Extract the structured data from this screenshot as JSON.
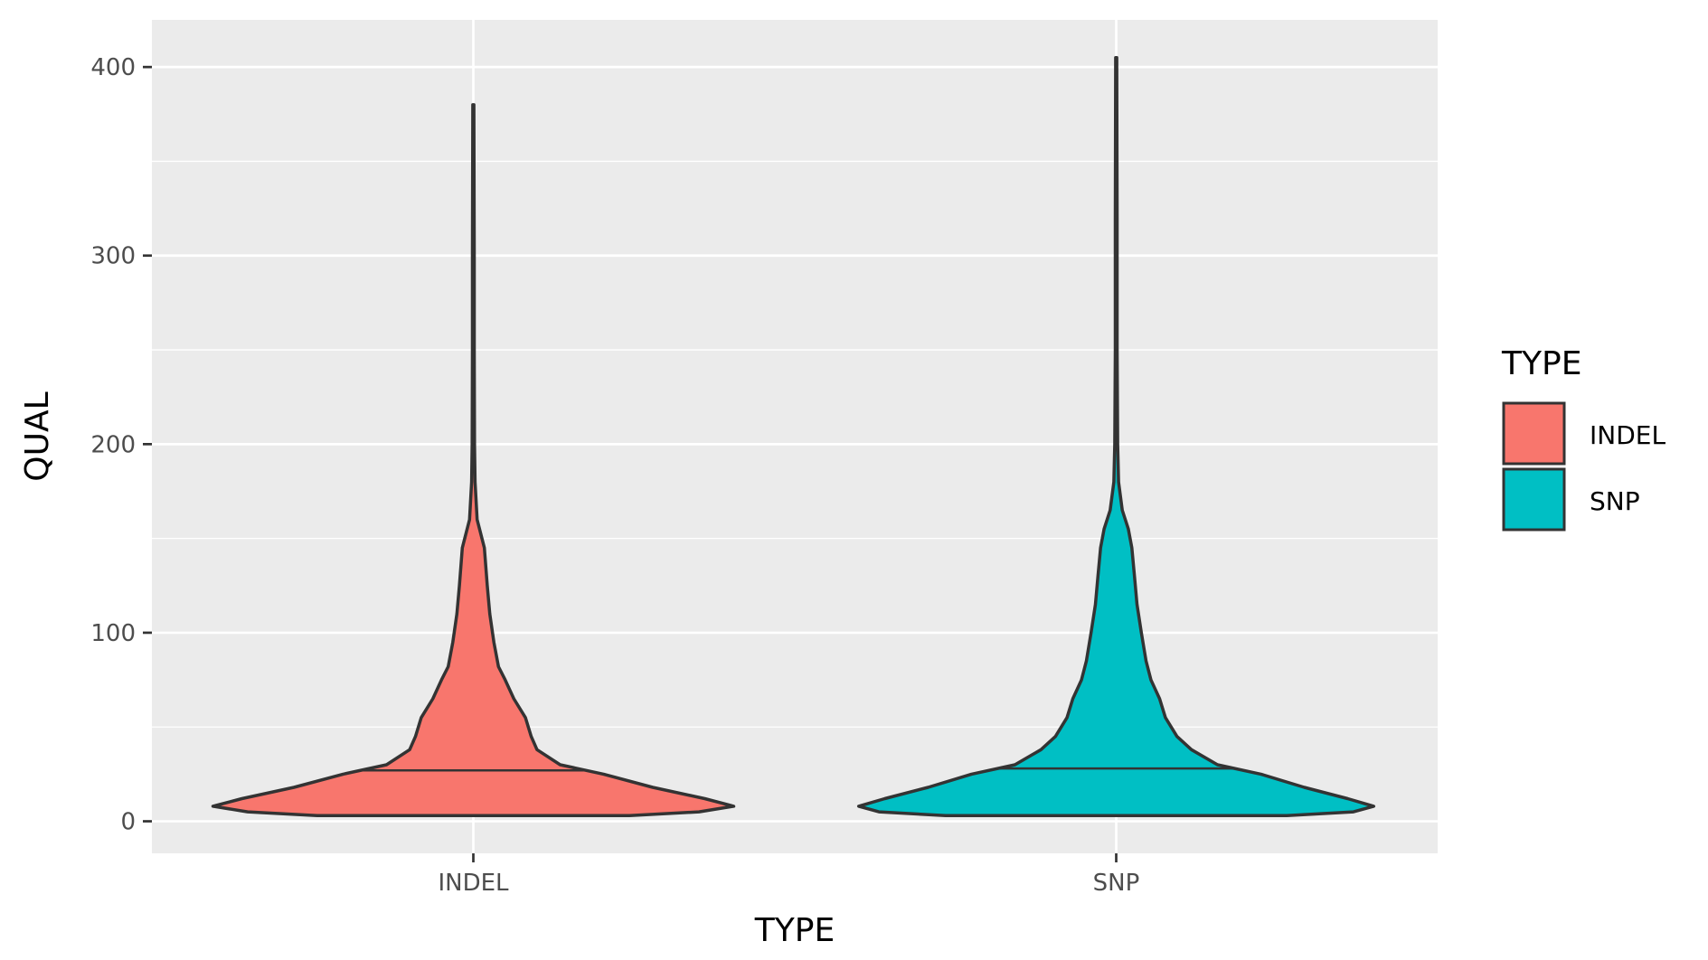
{
  "chart_data": {
    "type": "violin",
    "xlabel": "TYPE",
    "ylabel": "QUAL",
    "categories": [
      "INDEL",
      "SNP"
    ],
    "ylim": [
      -17,
      425
    ],
    "yticks": [
      0,
      100,
      200,
      300,
      400
    ],
    "grid": true,
    "legend": {
      "title": "TYPE",
      "position": "right",
      "entries": [
        {
          "label": "INDEL",
          "color": "#F8766D"
        },
        {
          "label": "SNP",
          "color": "#00BFC4"
        }
      ]
    },
    "series": [
      {
        "name": "INDEL",
        "color": "#F8766D",
        "median": 27,
        "min": 3,
        "max": 380,
        "profile": [
          {
            "qual": 3,
            "width": 0.54
          },
          {
            "qual": 5,
            "width": 0.78
          },
          {
            "qual": 8,
            "width": 0.9
          },
          {
            "qual": 12,
            "width": 0.8
          },
          {
            "qual": 18,
            "width": 0.62
          },
          {
            "qual": 25,
            "width": 0.45
          },
          {
            "qual": 30,
            "width": 0.3
          },
          {
            "qual": 38,
            "width": 0.22
          },
          {
            "qual": 45,
            "width": 0.2
          },
          {
            "qual": 55,
            "width": 0.18
          },
          {
            "qual": 65,
            "width": 0.14
          },
          {
            "qual": 75,
            "width": 0.11
          },
          {
            "qual": 82,
            "width": 0.087
          },
          {
            "qual": 95,
            "width": 0.071
          },
          {
            "qual": 110,
            "width": 0.057
          },
          {
            "qual": 125,
            "width": 0.048
          },
          {
            "qual": 145,
            "width": 0.038
          },
          {
            "qual": 160,
            "width": 0.013
          },
          {
            "qual": 180,
            "width": 0.006
          },
          {
            "qual": 200,
            "width": 0.004
          },
          {
            "qual": 250,
            "width": 0.003
          },
          {
            "qual": 300,
            "width": 0.003
          },
          {
            "qual": 380,
            "width": 0.002
          }
        ]
      },
      {
        "name": "SNP",
        "color": "#00BFC4",
        "median": 28,
        "min": 3,
        "max": 405,
        "profile": [
          {
            "qual": 3,
            "width": 0.59
          },
          {
            "qual": 5,
            "width": 0.82
          },
          {
            "qual": 8,
            "width": 0.89
          },
          {
            "qual": 12,
            "width": 0.8
          },
          {
            "qual": 18,
            "width": 0.65
          },
          {
            "qual": 25,
            "width": 0.5
          },
          {
            "qual": 30,
            "width": 0.35
          },
          {
            "qual": 38,
            "width": 0.26
          },
          {
            "qual": 45,
            "width": 0.21
          },
          {
            "qual": 55,
            "width": 0.17
          },
          {
            "qual": 65,
            "width": 0.15
          },
          {
            "qual": 75,
            "width": 0.12
          },
          {
            "qual": 85,
            "width": 0.103
          },
          {
            "qual": 100,
            "width": 0.087
          },
          {
            "qual": 115,
            "width": 0.072
          },
          {
            "qual": 130,
            "width": 0.063
          },
          {
            "qual": 145,
            "width": 0.054
          },
          {
            "qual": 155,
            "width": 0.042
          },
          {
            "qual": 165,
            "width": 0.021
          },
          {
            "qual": 180,
            "width": 0.008
          },
          {
            "qual": 200,
            "width": 0.005
          },
          {
            "qual": 250,
            "width": 0.003
          },
          {
            "qual": 320,
            "width": 0.003
          },
          {
            "qual": 405,
            "width": 0.002
          }
        ]
      }
    ]
  }
}
